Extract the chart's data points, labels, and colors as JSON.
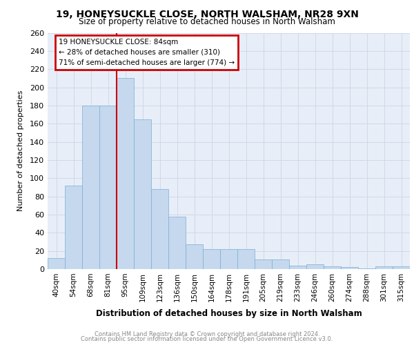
{
  "title1": "19, HONEYSUCKLE CLOSE, NORTH WALSHAM, NR28 9XN",
  "title2": "Size of property relative to detached houses in North Walsham",
  "xlabel": "Distribution of detached houses by size in North Walsham",
  "ylabel": "Number of detached properties",
  "categories": [
    "40sqm",
    "54sqm",
    "68sqm",
    "81sqm",
    "95sqm",
    "109sqm",
    "123sqm",
    "136sqm",
    "150sqm",
    "164sqm",
    "178sqm",
    "191sqm",
    "205sqm",
    "219sqm",
    "233sqm",
    "246sqm",
    "260sqm",
    "274sqm",
    "288sqm",
    "301sqm",
    "315sqm"
  ],
  "values": [
    12,
    92,
    180,
    180,
    210,
    165,
    88,
    58,
    27,
    22,
    22,
    22,
    11,
    11,
    4,
    5,
    3,
    2,
    1,
    3,
    3
  ],
  "bar_color": "#c5d8ed",
  "bar_edge_color": "#7aaed4",
  "grid_color": "#d0d8e8",
  "background_color": "#e8eef8",
  "red_line_x": 3.5,
  "annotation_title": "19 HONEYSUCKLE CLOSE: 84sqm",
  "annotation_line1": "← 28% of detached houses are smaller (310)",
  "annotation_line2": "71% of semi-detached houses are larger (774) →",
  "annotation_box_color": "#ffffff",
  "annotation_border_color": "#cc0000",
  "red_line_color": "#cc0000",
  "footer1": "Contains HM Land Registry data © Crown copyright and database right 2024.",
  "footer2": "Contains public sector information licensed under the Open Government Licence v3.0.",
  "ylim": [
    0,
    260
  ],
  "yticks": [
    0,
    20,
    40,
    60,
    80,
    100,
    120,
    140,
    160,
    180,
    200,
    220,
    240,
    260
  ]
}
